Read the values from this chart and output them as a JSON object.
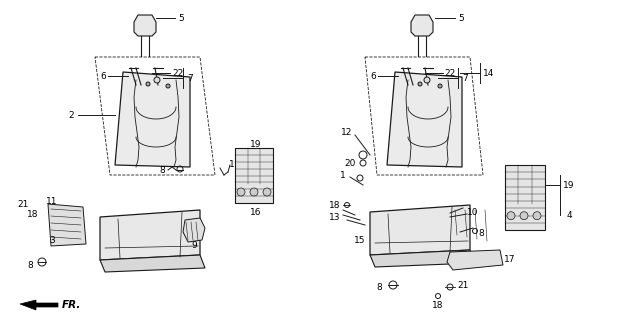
{
  "bg_color": "#ffffff",
  "line_color": "#1a1a1a",
  "fig_width": 6.19,
  "fig_height": 3.2,
  "dpi": 100,
  "fr_label": "FR."
}
